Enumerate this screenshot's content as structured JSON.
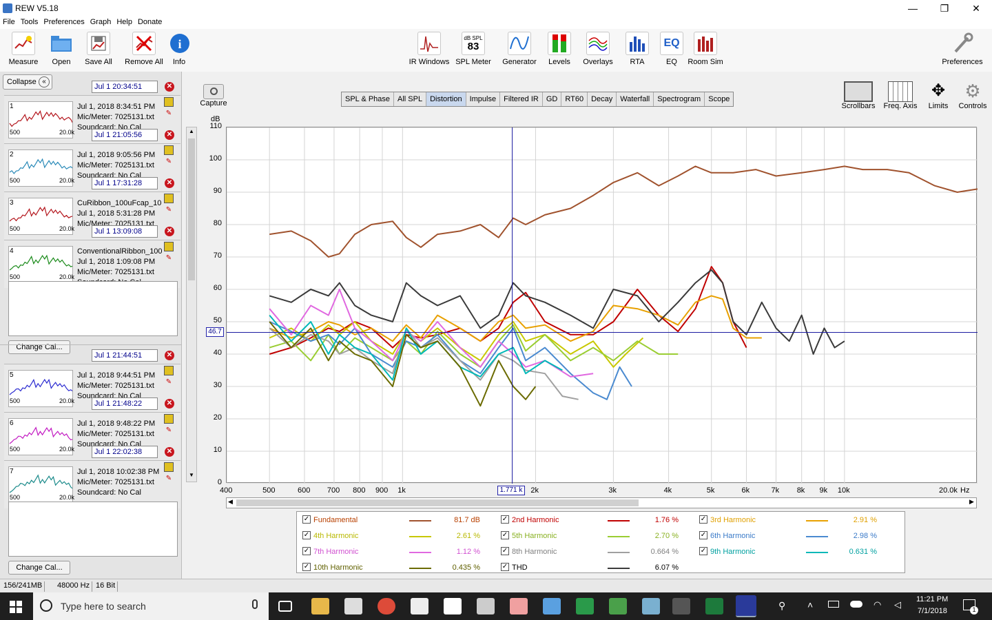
{
  "window": {
    "title": "REW V5.18",
    "controls": [
      "—",
      "❐",
      "✕"
    ]
  },
  "menu": [
    "File",
    "Tools",
    "Preferences",
    "Graph",
    "Help",
    "Donate"
  ],
  "toolbar_left": [
    {
      "label": "Measure",
      "icon": "measure-icon"
    },
    {
      "label": "Open",
      "icon": "folder-icon"
    },
    {
      "label": "Save All",
      "icon": "save-icon"
    },
    {
      "label": "Remove All",
      "icon": "remove-icon"
    },
    {
      "label": "Info",
      "icon": "info-icon"
    }
  ],
  "toolbar_center": [
    {
      "label": "IR Windows",
      "icon": "ir-windows-icon"
    },
    {
      "label": "SPL Meter",
      "icon": "spl-meter-icon",
      "meter_unit": "dB SPL",
      "meter_value": "83"
    },
    {
      "label": "Generator",
      "icon": "generator-icon"
    },
    {
      "label": "Levels",
      "icon": "levels-icon"
    },
    {
      "label": "Overlays",
      "icon": "overlays-icon"
    },
    {
      "label": "RTA",
      "icon": "rta-icon"
    },
    {
      "label": "EQ",
      "icon": "eq-icon"
    },
    {
      "label": "Room Sim",
      "icon": "room-sim-icon"
    }
  ],
  "preferences_label": "Preferences",
  "collapse_label": "Collapse",
  "measurements": [
    {
      "num": "1",
      "stamp": "Jul 1 20:34:51",
      "name": "",
      "date": "Jul 1, 2018 8:34:51 PM",
      "mic": "Mic/Meter: 7025131.txt",
      "sound": "Soundcard: No Cal",
      "color": "#b3141b"
    },
    {
      "num": "2",
      "stamp": "Jul 1 21:05:56",
      "name": "",
      "date": "Jul 1, 2018 9:05:56 PM",
      "mic": "Mic/Meter: 7025131.txt",
      "sound": "Soundcard: No Cal",
      "color": "#2a8ab8"
    },
    {
      "num": "3",
      "stamp": "Jul 1 17:31:28",
      "name": "CuRibbon_100uFcap_10",
      "date": "Jul 1, 2018 5:31:28 PM",
      "mic": "Mic/Meter: 7025131.txt",
      "sound": "",
      "color": "#b3141b"
    },
    {
      "num": "4",
      "stamp": "Jul 1 13:09:08",
      "name": "ConventionalRibbon_100",
      "date": "Jul 1, 2018 1:09:08 PM",
      "mic": "Mic/Meter: 7025131.txt",
      "sound": "Soundcard: No Cal",
      "color": "#1a8a1a"
    },
    {
      "num": "5",
      "stamp": "Jul 1 21:44:51",
      "name": "",
      "date": "Jul 1, 2018 9:44:51 PM",
      "mic": "Mic/Meter: 7025131.txt",
      "sound": "Soundcard: No Cal",
      "color": "#2a2ad0"
    },
    {
      "num": "6",
      "stamp": "Jul 1 21:48:22",
      "name": "",
      "date": "Jul 1, 2018 9:48:22 PM",
      "mic": "Mic/Meter: 7025131.txt",
      "sound": "Soundcard: No Cal",
      "color": "#c21ac2"
    },
    {
      "num": "7",
      "stamp": "Jul 1 22:02:38",
      "name": "",
      "date": "Jul 1, 2018 10:02:38 PM",
      "mic": "Mic/Meter: 7025131.txt",
      "sound": "Soundcard: No Cal",
      "color": "#1a8a8a"
    }
  ],
  "thumb_axis": {
    "lo": "500",
    "hi": "20.0k"
  },
  "change_cal_label": "Change Cal...",
  "capture_label": "Capture",
  "tabs": [
    "SPL & Phase",
    "All SPL",
    "Distortion",
    "Impulse",
    "Filtered IR",
    "GD",
    "RT60",
    "Decay",
    "Waterfall",
    "Spectrogram",
    "Scope"
  ],
  "active_tab": "Distortion",
  "right_tools": [
    {
      "label": "Scrollbars",
      "icon": "scrollbars-icon"
    },
    {
      "label": "Freq. Axis",
      "icon": "freq-axis-icon"
    },
    {
      "label": "Limits",
      "icon": "limits-icon"
    },
    {
      "label": "Controls",
      "icon": "gear-icon"
    }
  ],
  "cursor": {
    "freq_label": "1.771 k",
    "level_label": "46.7"
  },
  "chart_data": {
    "type": "line",
    "ylabel": "dB",
    "xlabel": "Hz",
    "x_scale": "log",
    "xlim": [
      400,
      20000
    ],
    "ylim": [
      0,
      110
    ],
    "x_ticks": [
      400,
      500,
      600,
      700,
      800,
      900,
      1000,
      2000,
      3000,
      4000,
      5000,
      6000,
      7000,
      8000,
      9000,
      10000,
      20000
    ],
    "x_tick_labels": [
      "400",
      "500",
      "600",
      "700",
      "800",
      "900",
      "1k",
      "2k",
      "3k",
      "4k",
      "5k",
      "6k",
      "7k",
      "8k",
      "9k",
      "10k",
      "20.0k"
    ],
    "y_ticks": [
      0,
      10,
      20,
      30,
      40,
      50,
      60,
      70,
      80,
      90,
      100,
      110
    ],
    "grid": true,
    "cursor": {
      "x": 1771,
      "y": 46.7
    },
    "series": [
      {
        "name": "Fundamental",
        "color": "#a0522d",
        "value_label": "81.7 dB",
        "x": [
          500,
          560,
          620,
          680,
          720,
          780,
          850,
          950,
          1020,
          1100,
          1200,
          1350,
          1500,
          1650,
          1780,
          1900,
          2100,
          2400,
          2700,
          3000,
          3400,
          3800,
          4200,
          4600,
          5000,
          5600,
          6300,
          7000,
          8000,
          9000,
          10000,
          11000,
          12500,
          14000,
          16000,
          18000,
          20000
        ],
        "y": [
          77,
          78,
          75,
          70,
          71,
          77,
          80,
          81,
          76,
          73,
          77,
          78,
          80,
          76,
          82,
          80,
          83,
          85,
          89,
          93,
          96,
          92,
          95,
          98,
          96,
          96,
          97,
          95,
          96,
          97,
          98,
          97,
          97,
          96,
          92,
          90,
          91
        ]
      },
      {
        "name": "2nd Harmonic",
        "color": "#c00000",
        "x": [
          500,
          560,
          620,
          680,
          720,
          780,
          850,
          950,
          1020,
          1100,
          1200,
          1350,
          1500,
          1650,
          1780,
          1900,
          2100,
          2400,
          2700,
          3000,
          3400,
          3800,
          4200,
          4600,
          5000,
          5300,
          5600,
          6000
        ],
        "y": [
          40,
          42,
          45,
          48,
          47,
          50,
          48,
          42,
          46,
          45,
          46,
          48,
          44,
          48,
          56,
          59,
          50,
          46,
          46,
          50,
          60,
          52,
          47,
          54,
          67,
          62,
          50,
          42
        ]
      },
      {
        "name": "3rd Harmonic",
        "color": "#e8a000",
        "value_label": "2.91 %",
        "x": [
          500,
          560,
          620,
          680,
          720,
          780,
          850,
          950,
          1020,
          1100,
          1200,
          1350,
          1500,
          1650,
          1780,
          1900,
          2100,
          2400,
          2700,
          3000,
          3400,
          3800,
          4200,
          4600,
          5000,
          5300,
          5600,
          6000,
          6500
        ],
        "y": [
          48,
          45,
          47,
          50,
          49,
          46,
          48,
          44,
          49,
          45,
          52,
          48,
          44,
          50,
          52,
          48,
          49,
          44,
          47,
          55,
          54,
          52,
          49,
          56,
          58,
          57,
          48,
          45,
          45
        ]
      },
      {
        "name": "4th Harmonic",
        "color": "#c8c800",
        "value_label": "2.61 %",
        "x": [
          500,
          560,
          620,
          680,
          720,
          780,
          850,
          950,
          1020,
          1100,
          1200,
          1350,
          1500,
          1650,
          1780,
          1900,
          2100,
          2400,
          2700,
          3000,
          3200,
          3500
        ],
        "y": [
          45,
          48,
          44,
          49,
          46,
          50,
          44,
          40,
          47,
          44,
          48,
          42,
          38,
          46,
          50,
          44,
          46,
          40,
          44,
          36,
          40,
          45
        ]
      },
      {
        "name": "5th Harmonic",
        "color": "#9acd32",
        "value_label": "2.70 %",
        "x": [
          500,
          560,
          620,
          680,
          720,
          780,
          850,
          950,
          1020,
          1100,
          1200,
          1350,
          1500,
          1650,
          1780,
          1900,
          2100,
          2400,
          2700,
          3000,
          3400,
          3800,
          4200
        ],
        "y": [
          42,
          44,
          38,
          46,
          40,
          45,
          42,
          38,
          44,
          40,
          47,
          40,
          36,
          44,
          49,
          41,
          46,
          38,
          42,
          38,
          44,
          40,
          40
        ]
      },
      {
        "name": "6th Harmonic",
        "color": "#4a8ad0",
        "value_label": "2.98 %",
        "x": [
          500,
          560,
          620,
          680,
          720,
          780,
          850,
          950,
          1020,
          1100,
          1200,
          1350,
          1500,
          1650,
          1780,
          1900,
          2100,
          2400,
          2700,
          2900,
          3100,
          3300
        ],
        "y": [
          50,
          47,
          44,
          46,
          43,
          48,
          40,
          36,
          44,
          42,
          46,
          38,
          34,
          42,
          48,
          38,
          42,
          34,
          28,
          26,
          36,
          30
        ]
      },
      {
        "name": "7th Harmonic",
        "color": "#e068e0",
        "value_label": "1.12 %",
        "x": [
          500,
          560,
          620,
          680,
          720,
          780,
          850,
          950,
          1020,
          1100,
          1200,
          1350,
          1500,
          1650,
          1780,
          1900,
          2100,
          2400,
          2700
        ],
        "y": [
          54,
          46,
          55,
          52,
          60,
          48,
          44,
          38,
          47,
          44,
          50,
          42,
          36,
          44,
          40,
          36,
          38,
          33,
          34
        ]
      },
      {
        "name": "8th Harmonic",
        "color": "#a0a0a0",
        "value_label": "0.664 %",
        "x": [
          500,
          560,
          620,
          680,
          720,
          780,
          850,
          950,
          1020,
          1100,
          1200,
          1350,
          1500,
          1650,
          1780,
          1900,
          2100,
          2300,
          2500
        ],
        "y": [
          48,
          42,
          46,
          44,
          40,
          42,
          38,
          34,
          48,
          42,
          45,
          38,
          32,
          40,
          38,
          35,
          34,
          27,
          26
        ]
      },
      {
        "name": "9th Harmonic",
        "color": "#00b8b8",
        "value_label": "0.631 %",
        "x": [
          500,
          560,
          620,
          680,
          720,
          780,
          850,
          950,
          1020,
          1100,
          1200,
          1350,
          1500,
          1650,
          1780,
          1900,
          2100,
          2300
        ],
        "y": [
          52,
          44,
          50,
          40,
          46,
          42,
          40,
          32,
          48,
          40,
          44,
          36,
          33,
          40,
          42,
          34,
          38,
          35
        ]
      },
      {
        "name": "10th Harmonic",
        "color": "#6b6b00",
        "value_label": "0.435 %",
        "x": [
          500,
          560,
          620,
          680,
          720,
          780,
          850,
          950,
          1020,
          1100,
          1200,
          1350,
          1500,
          1650,
          1780,
          1900,
          2000
        ],
        "y": [
          50,
          42,
          48,
          38,
          44,
          40,
          38,
          30,
          46,
          42,
          44,
          36,
          24,
          38,
          30,
          26,
          30
        ]
      },
      {
        "name": "THD",
        "color": "#3a3a3a",
        "value_label": "6.07 %",
        "x": [
          500,
          560,
          620,
          680,
          720,
          780,
          850,
          950,
          1020,
          1100,
          1200,
          1350,
          1500,
          1650,
          1780,
          1900,
          2100,
          2400,
          2700,
          3000,
          3400,
          3800,
          4200,
          4600,
          5000,
          5300,
          5600,
          6000,
          6500,
          7000,
          7500,
          8000,
          8500,
          9000,
          9500,
          10000
        ],
        "y": [
          58,
          56,
          60,
          58,
          62,
          55,
          52,
          50,
          62,
          58,
          55,
          58,
          48,
          52,
          62,
          58,
          56,
          52,
          48,
          60,
          58,
          50,
          56,
          62,
          66,
          62,
          50,
          46,
          56,
          48,
          44,
          52,
          40,
          48,
          42,
          44
        ]
      }
    ]
  },
  "legend": [
    {
      "name": "Fundamental",
      "value": "81.7 dB",
      "color": "#a0522d",
      "text_color": "#b84000"
    },
    {
      "name": "2nd Harmonic",
      "value": "1.76 %",
      "color": "#c00000",
      "text_color": "#c00000"
    },
    {
      "name": "3rd Harmonic",
      "value": "2.91 %",
      "color": "#e8a000",
      "text_color": "#e0a000"
    },
    {
      "name": "4th Harmonic",
      "value": "2.61 %",
      "color": "#c8c800",
      "text_color": "#b8b800"
    },
    {
      "name": "5th Harmonic",
      "value": "2.70 %",
      "color": "#9acd32",
      "text_color": "#88b020"
    },
    {
      "name": "6th Harmonic",
      "value": "2.98 %",
      "color": "#4a8ad0",
      "text_color": "#3a7ac8"
    },
    {
      "name": "7th Harmonic",
      "value": "1.12 %",
      "color": "#e068e0",
      "text_color": "#d050d0"
    },
    {
      "name": "8th Harmonic",
      "value": "0.664 %",
      "color": "#a0a0a0",
      "text_color": "#808080"
    },
    {
      "name": "9th Harmonic",
      "value": "0.631 %",
      "color": "#00b8b8",
      "text_color": "#00a0a0"
    },
    {
      "name": "10th Harmonic",
      "value": "0.435 %",
      "color": "#6b6b00",
      "text_color": "#606000"
    },
    {
      "name": "THD",
      "value": "6.07 %",
      "color": "#3a3a3a",
      "text_color": "#000000"
    }
  ],
  "status": [
    "156/241MB",
    "48000 Hz",
    "16 Bit"
  ],
  "taskbar": {
    "search_placeholder": "Type here to search",
    "time": "11:21 PM",
    "date": "7/1/2018",
    "notif_count": "1"
  }
}
